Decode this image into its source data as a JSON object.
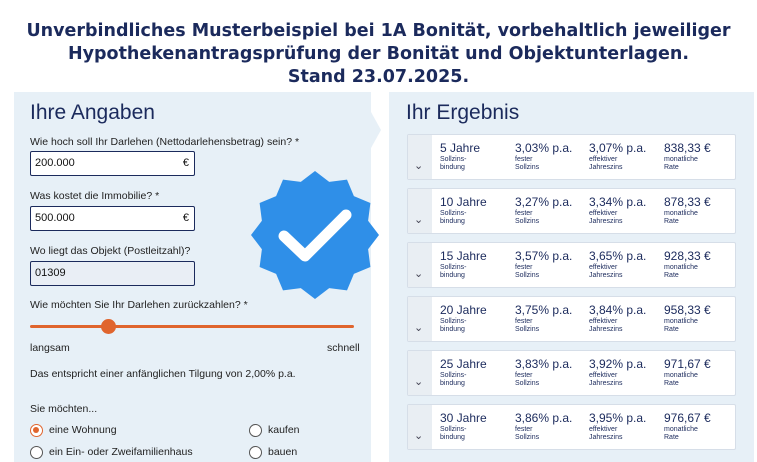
{
  "disclaimer": {
    "line1": "Unverbindliches Musterbeispiel bei 1A Bonität, vorbehaltlich jeweiliger",
    "line2": "Hypothekenantragsprüfung der Bonität und Objektunterlagen.",
    "line3": "Stand 23.07.2025."
  },
  "left": {
    "title": "Ihre Angaben",
    "q_loan": "Wie hoch soll Ihr Darlehen (Nettodarlehensbetrag) sein? *",
    "loan_value": "200.000",
    "q_price": "Was kostet die Immobilie? *",
    "price_value": "500.000",
    "currency": "€",
    "q_zip": "Wo liegt das Objekt (Postleitzahl)?",
    "zip_value": "01309",
    "q_repay": "Wie möchten Sie Ihr Darlehen zurückzahlen? *",
    "slow": "langsam",
    "fast": "schnell",
    "repay_level": 0.24,
    "tilgung_text": "Das entspricht einer anfänglichen Tilgung von 2,00% p.a.",
    "q_want": "Sie möchten...",
    "opt_wohnung": "eine Wohnung",
    "opt_haus": "ein Ein- oder Zweifamilienhaus",
    "opt_kaufen": "kaufen",
    "opt_bauen": "bauen"
  },
  "right": {
    "title": "Ihr Ergebnis",
    "sub_bindung": "Sollzins-\nbindung",
    "sub_fest": "fester\nSollzins",
    "sub_eff": "effektiver\nJahreszins",
    "sub_rate": "monatliche\nRate",
    "rows": [
      {
        "term": "5 Jahre",
        "soll": "3,03% p.a.",
        "eff": "3,07% p.a.",
        "rate": "838,33 €"
      },
      {
        "term": "10 Jahre",
        "soll": "3,27% p.a.",
        "eff": "3,34% p.a.",
        "rate": "878,33 €"
      },
      {
        "term": "15 Jahre",
        "soll": "3,57% p.a.",
        "eff": "3,65% p.a.",
        "rate": "928,33 €"
      },
      {
        "term": "20 Jahre",
        "soll": "3,75% p.a.",
        "eff": "3,84% p.a.",
        "rate": "958,33 €"
      },
      {
        "term": "25 Jahre",
        "soll": "3,83% p.a.",
        "eff": "3,92% p.a.",
        "rate": "971,67 €"
      },
      {
        "term": "30 Jahre",
        "soll": "3,86% p.a.",
        "eff": "3,95% p.a.",
        "rate": "976,67 €"
      }
    ]
  },
  "colors": {
    "accent": "#e0652e",
    "navy": "#1b2a5c",
    "badge": "#2f8fe8",
    "panel": "#e7f0f7"
  },
  "icons": {
    "badge": "verified-check-badge-icon",
    "row_toggle": "chevron-down-icon"
  }
}
